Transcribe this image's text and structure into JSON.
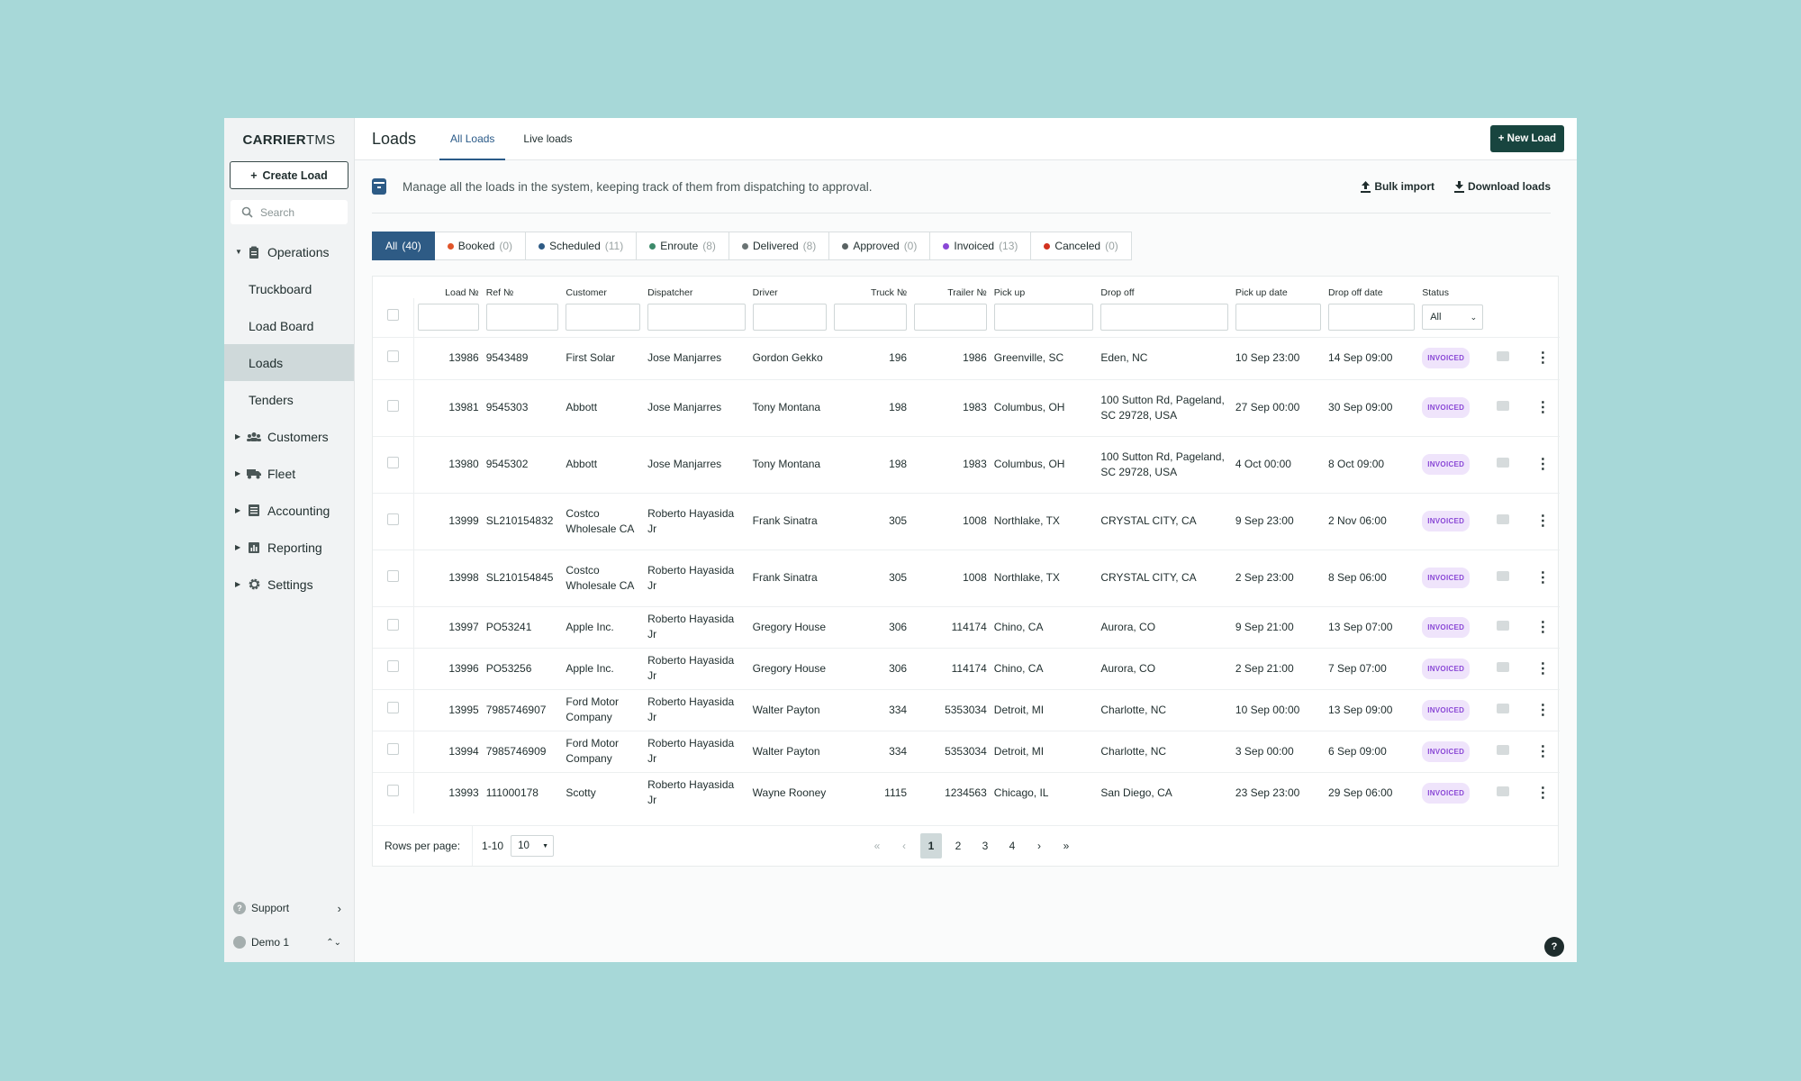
{
  "app": {
    "logo_bold": "CARRIER",
    "logo_light": "TMS"
  },
  "sidebar": {
    "create_label": "Create Load",
    "search_placeholder": "Search",
    "groups": {
      "operations": "Operations",
      "customers": "Customers",
      "fleet": "Fleet",
      "accounting": "Accounting",
      "reporting": "Reporting",
      "settings": "Settings"
    },
    "sub": [
      "Truckboard",
      "Load Board",
      "Loads",
      "Tenders"
    ],
    "support": "Support",
    "user": "Demo 1"
  },
  "header": {
    "title": "Loads",
    "tabs": [
      "All Loads",
      "Live loads"
    ],
    "new_load": "+ New Load"
  },
  "info": {
    "text": "Manage all the loads in the system, keeping track of them from dispatching to approval.",
    "bulk_import": "Bulk import",
    "download": "Download loads"
  },
  "filters": [
    {
      "label": "All",
      "count": "(40)",
      "color": ""
    },
    {
      "label": "Booked",
      "count": "(0)",
      "color": "#e0552a"
    },
    {
      "label": "Scheduled",
      "count": "(11)",
      "color": "#2e5b85"
    },
    {
      "label": "Enroute",
      "count": "(8)",
      "color": "#3c8a6a"
    },
    {
      "label": "Delivered",
      "count": "(8)",
      "color": "#6b7474"
    },
    {
      "label": "Approved",
      "count": "(0)",
      "color": "#5a6363"
    },
    {
      "label": "Invoiced",
      "count": "(13)",
      "color": "#8a48d6"
    },
    {
      "label": "Canceled",
      "count": "(0)",
      "color": "#d2321f"
    }
  ],
  "table": {
    "columns": [
      "Load №",
      "Ref №",
      "Customer",
      "Dispatcher",
      "Driver",
      "Truck №",
      "Trailer №",
      "Pick up",
      "Drop off",
      "Pick up date",
      "Drop off date",
      "Status"
    ],
    "status_filter": "All",
    "rows": [
      {
        "load": "13986",
        "ref": "9543489",
        "customer": "First Solar",
        "dispatcher": "Jose Manjarres",
        "driver": "Gordon Gekko",
        "truck": "196",
        "trailer": "1986",
        "pickup": "Greenville, SC",
        "dropoff": "Eden, NC",
        "pickup_date": "10 Sep 23:00",
        "dropoff_date": "14 Sep 09:00",
        "status": "INVOICED"
      },
      {
        "load": "13981",
        "ref": "9545303",
        "customer": "Abbott",
        "dispatcher": "Jose Manjarres",
        "driver": "Tony Montana",
        "truck": "198",
        "trailer": "1983",
        "pickup": "Columbus, OH",
        "dropoff": "100 Sutton Rd, Pageland, SC 29728, USA",
        "pickup_date": "27 Sep 00:00",
        "dropoff_date": "30 Sep 09:00",
        "status": "INVOICED"
      },
      {
        "load": "13980",
        "ref": "9545302",
        "customer": "Abbott",
        "dispatcher": "Jose Manjarres",
        "driver": "Tony Montana",
        "truck": "198",
        "trailer": "1983",
        "pickup": "Columbus, OH",
        "dropoff": "100 Sutton Rd, Pageland, SC 29728, USA",
        "pickup_date": "4 Oct 00:00",
        "dropoff_date": "8 Oct 09:00",
        "status": "INVOICED"
      },
      {
        "load": "13999",
        "ref": "SL210154832",
        "customer": "Costco Wholesale CA",
        "dispatcher": "Roberto Hayasida Jr",
        "driver": "Frank Sinatra",
        "truck": "305",
        "trailer": "1008",
        "pickup": "Northlake, TX",
        "dropoff": "CRYSTAL CITY, CA",
        "pickup_date": "9 Sep 23:00",
        "dropoff_date": "2 Nov 06:00",
        "status": "INVOICED"
      },
      {
        "load": "13998",
        "ref": "SL210154845",
        "customer": "Costco Wholesale CA",
        "dispatcher": "Roberto Hayasida Jr",
        "driver": "Frank Sinatra",
        "truck": "305",
        "trailer": "1008",
        "pickup": "Northlake, TX",
        "dropoff": "CRYSTAL CITY, CA",
        "pickup_date": "2 Sep 23:00",
        "dropoff_date": "8 Sep 06:00",
        "status": "INVOICED"
      },
      {
        "load": "13997",
        "ref": "PO53241",
        "customer": "Apple Inc.",
        "dispatcher": "Roberto Hayasida Jr",
        "driver": "Gregory House",
        "truck": "306",
        "trailer": "114174",
        "pickup": "Chino, CA",
        "dropoff": "Aurora, CO",
        "pickup_date": "9 Sep 21:00",
        "dropoff_date": "13 Sep 07:00",
        "status": "INVOICED"
      },
      {
        "load": "13996",
        "ref": "PO53256",
        "customer": "Apple Inc.",
        "dispatcher": "Roberto Hayasida Jr",
        "driver": "Gregory House",
        "truck": "306",
        "trailer": "114174",
        "pickup": "Chino, CA",
        "dropoff": "Aurora, CO",
        "pickup_date": "2 Sep 21:00",
        "dropoff_date": "7 Sep 07:00",
        "status": "INVOICED"
      },
      {
        "load": "13995",
        "ref": "7985746907",
        "customer": "Ford Motor Company",
        "dispatcher": "Roberto Hayasida Jr",
        "driver": "Walter Payton",
        "truck": "334",
        "trailer": "5353034",
        "pickup": "Detroit, MI",
        "dropoff": "Charlotte, NC",
        "pickup_date": "10 Sep 00:00",
        "dropoff_date": "13 Sep 09:00",
        "status": "INVOICED"
      },
      {
        "load": "13994",
        "ref": "7985746909",
        "customer": "Ford Motor Company",
        "dispatcher": "Roberto Hayasida Jr",
        "driver": "Walter Payton",
        "truck": "334",
        "trailer": "5353034",
        "pickup": "Detroit, MI",
        "dropoff": "Charlotte, NC",
        "pickup_date": "3 Sep 00:00",
        "dropoff_date": "6 Sep 09:00",
        "status": "INVOICED"
      },
      {
        "load": "13993",
        "ref": "111000178",
        "customer": "Scotty",
        "dispatcher": "Roberto Hayasida Jr",
        "driver": "Wayne Rooney",
        "truck": "1115",
        "trailer": "1234563",
        "pickup": "Chicago, IL",
        "dropoff": "San Diego, CA",
        "pickup_date": "23 Sep 23:00",
        "dropoff_date": "29 Sep 06:00",
        "status": "INVOICED"
      }
    ]
  },
  "pager": {
    "rows_per_page_label": "Rows per page:",
    "range": "1-10",
    "per_page": "10",
    "pages": [
      "1",
      "2",
      "3",
      "4"
    ],
    "current": "1"
  }
}
